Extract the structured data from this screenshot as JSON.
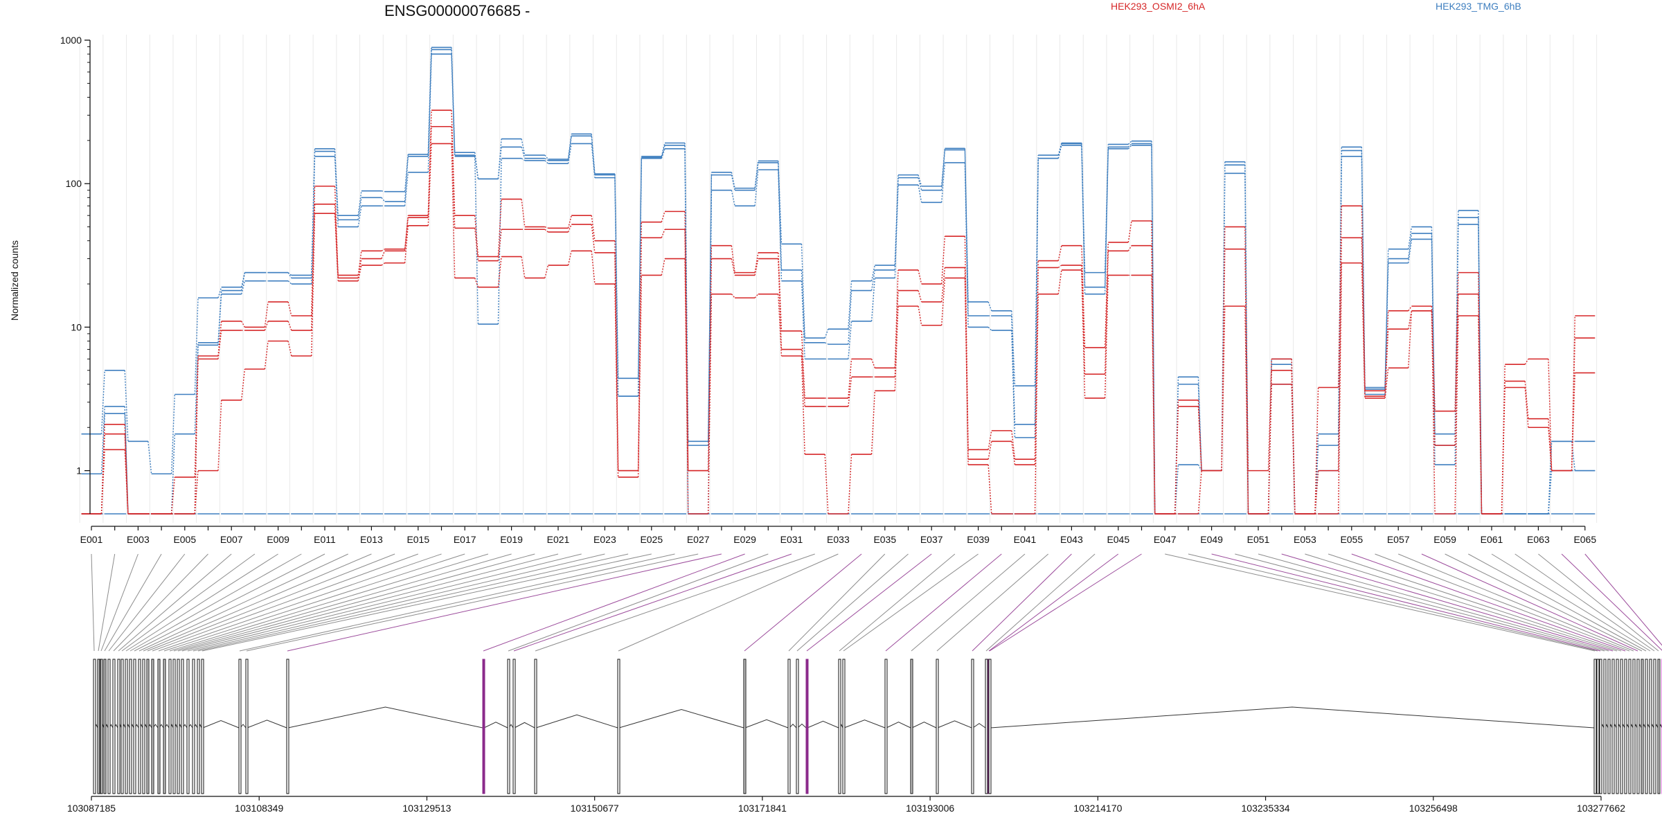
{
  "chart_data": {
    "type": "line",
    "title": "ENSG00000076685 -",
    "ylabel": "Normalized counts",
    "xlabel": "",
    "y_scale": "log",
    "ylim": [
      0.5,
      1000
    ],
    "y_ticks": [
      1,
      10,
      100,
      1000
    ],
    "y_tick_labels": [
      "1",
      "10",
      "100",
      "1000"
    ],
    "grid": "vertical",
    "legend_placement": "top",
    "series_groups": [
      {
        "name": "HEK293_OSMI2_6hA",
        "color": "#d62728"
      },
      {
        "name": "HEK293_TMG_6hB",
        "color": "#3d7ebf"
      }
    ],
    "exon_count": 65,
    "x_tick_labels": [
      "E001",
      "E003",
      "E005",
      "E007",
      "E009",
      "E011",
      "E013",
      "E015",
      "E017",
      "E019",
      "E021",
      "E023",
      "E025",
      "E027",
      "E029",
      "E031",
      "E033",
      "E035",
      "E037",
      "E039",
      "E041",
      "E043",
      "E045",
      "E047",
      "E049",
      "E051",
      "E053",
      "E055",
      "E057",
      "E059",
      "E061",
      "E063",
      "E065"
    ],
    "series": [
      {
        "group": "HEK293_TMG_6hB",
        "values": [
          1.8,
          5,
          1.6,
          0.95,
          3.4,
          16,
          19,
          24,
          24,
          23,
          175,
          60,
          89,
          88,
          160,
          890,
          165,
          108,
          205,
          158,
          148,
          222,
          117,
          4.4,
          155,
          192,
          1.6,
          120,
          93,
          144,
          38,
          8.4,
          9.7,
          21,
          27,
          115,
          96,
          176,
          15,
          13,
          3.9,
          158,
          192,
          24,
          188,
          198,
          0.5,
          4.5,
          1,
          142,
          0.5,
          6,
          0.5,
          1.8,
          180,
          3.8,
          35,
          50,
          1.8,
          65,
          0.5,
          0.5,
          0.5,
          1.6,
          1.6
        ]
      },
      {
        "group": "HEK293_TMG_6hB",
        "values": [
          0.95,
          2.8,
          0.5,
          0.5,
          1.8,
          7.8,
          18,
          24,
          24,
          22,
          168,
          56,
          80,
          75,
          155,
          860,
          158,
          108,
          180,
          150,
          145,
          215,
          115,
          3.3,
          152,
          185,
          1.5,
          115,
          90,
          140,
          25,
          7.8,
          7.6,
          18,
          25,
          110,
          90,
          172,
          12,
          12,
          2.1,
          150,
          190,
          19,
          180,
          190,
          0.5,
          4,
          1,
          135,
          0.5,
          5.5,
          0.5,
          1.5,
          170,
          3.7,
          30,
          45,
          1.5,
          58,
          0.5,
          0.5,
          0.5,
          1.6,
          1
        ]
      },
      {
        "group": "HEK293_TMG_6hB",
        "values": [
          0.5,
          2.5,
          0.5,
          0.5,
          0.5,
          7.5,
          17,
          21,
          21,
          20,
          155,
          50,
          70,
          70,
          120,
          800,
          155,
          10.5,
          150,
          145,
          138,
          190,
          110,
          3.3,
          150,
          175,
          0.5,
          90,
          70,
          125,
          21,
          6,
          6,
          11,
          22,
          98,
          74,
          140,
          10,
          9.5,
          1.7,
          150,
          185,
          17,
          175,
          185,
          0.5,
          1.1,
          1,
          118,
          0.5,
          4,
          0.5,
          1,
          155,
          3.4,
          28,
          41,
          1.1,
          52,
          0.5,
          0.5,
          0.5,
          1,
          1
        ]
      },
      {
        "group": "HEK293_TMG_6hB",
        "values": [
          0.5,
          0.5,
          0.5,
          0.5,
          0.5,
          0.5,
          0.5,
          0.5,
          0.5,
          0.5,
          0.5,
          0.5,
          0.5,
          0.5,
          0.5,
          0.5,
          0.5,
          0.5,
          0.5,
          0.5,
          0.5,
          0.5,
          0.5,
          0.5,
          0.5,
          0.5,
          0.5,
          0.5,
          0.5,
          0.5,
          0.5,
          0.5,
          0.5,
          0.5,
          0.5,
          0.5,
          0.5,
          0.5,
          0.5,
          0.5,
          0.5,
          0.5,
          0.5,
          0.5,
          0.5,
          0.5,
          0.5,
          0.5,
          0.5,
          0.5,
          0.5,
          0.5,
          0.5,
          0.5,
          0.5,
          0.5,
          0.5,
          0.5,
          0.5,
          0.5,
          0.5,
          0.5,
          0.5,
          0.5,
          0.5
        ]
      },
      {
        "group": "HEK293_OSMI2_6hA",
        "values": [
          0.5,
          2.1,
          0.5,
          0.5,
          0.9,
          6.3,
          11,
          10,
          15,
          12,
          96,
          23,
          34,
          35,
          60,
          325,
          60,
          31,
          78,
          50,
          49,
          60,
          40,
          1,
          54,
          64,
          1,
          37,
          24,
          33,
          9.4,
          3.2,
          3.2,
          6,
          5.2,
          25,
          20,
          43,
          1.4,
          1.9,
          1.2,
          29,
          37,
          7.2,
          39,
          55,
          0.5,
          3.1,
          1,
          50,
          1,
          6,
          0.5,
          3.8,
          70,
          3.6,
          13,
          14,
          2.6,
          24,
          0.5,
          5.5,
          6,
          1,
          12
        ]
      },
      {
        "group": "HEK293_OSMI2_6hA",
        "values": [
          0.5,
          1.8,
          0.5,
          0.5,
          0.5,
          6,
          9.5,
          9.5,
          11,
          9.5,
          72,
          22,
          30,
          34,
          58,
          250,
          49,
          29,
          48,
          48,
          46,
          52,
          33,
          1,
          42,
          48,
          1,
          30,
          23,
          30,
          7,
          2.8,
          2.8,
          4.5,
          4.5,
          18,
          15,
          26,
          1.2,
          1.6,
          1.1,
          26,
          27,
          4.7,
          34,
          37,
          0.5,
          2.8,
          1,
          35,
          0.5,
          5,
          0.5,
          1,
          42,
          3.3,
          9.7,
          13,
          1.5,
          17,
          0.5,
          4.2,
          2.3,
          1,
          8.4
        ]
      },
      {
        "group": "HEK293_OSMI2_6hA",
        "values": [
          0.5,
          1.4,
          0.5,
          0.5,
          0.5,
          1,
          3.1,
          5.1,
          8,
          6.3,
          62,
          21,
          27,
          28,
          51,
          190,
          22,
          19,
          31,
          22,
          27,
          34,
          20,
          0.9,
          23,
          30,
          0.5,
          17,
          16,
          17,
          6.3,
          1.3,
          0.5,
          1.3,
          3.6,
          14,
          10.3,
          22,
          1.1,
          0.5,
          0.5,
          17,
          25,
          3.2,
          23,
          23,
          0.5,
          0.5,
          1,
          14,
          0.5,
          4,
          0.5,
          0.5,
          28,
          3.2,
          5.2,
          13,
          0.5,
          12,
          0.5,
          3.8,
          2,
          1,
          4.8
        ]
      }
    ],
    "coordinate_axis_labels": [
      "103087185",
      "103108349",
      "103129513",
      "103150677",
      "103171841",
      "103193006",
      "103214170",
      "103235334",
      "103256498",
      "103277662"
    ]
  }
}
